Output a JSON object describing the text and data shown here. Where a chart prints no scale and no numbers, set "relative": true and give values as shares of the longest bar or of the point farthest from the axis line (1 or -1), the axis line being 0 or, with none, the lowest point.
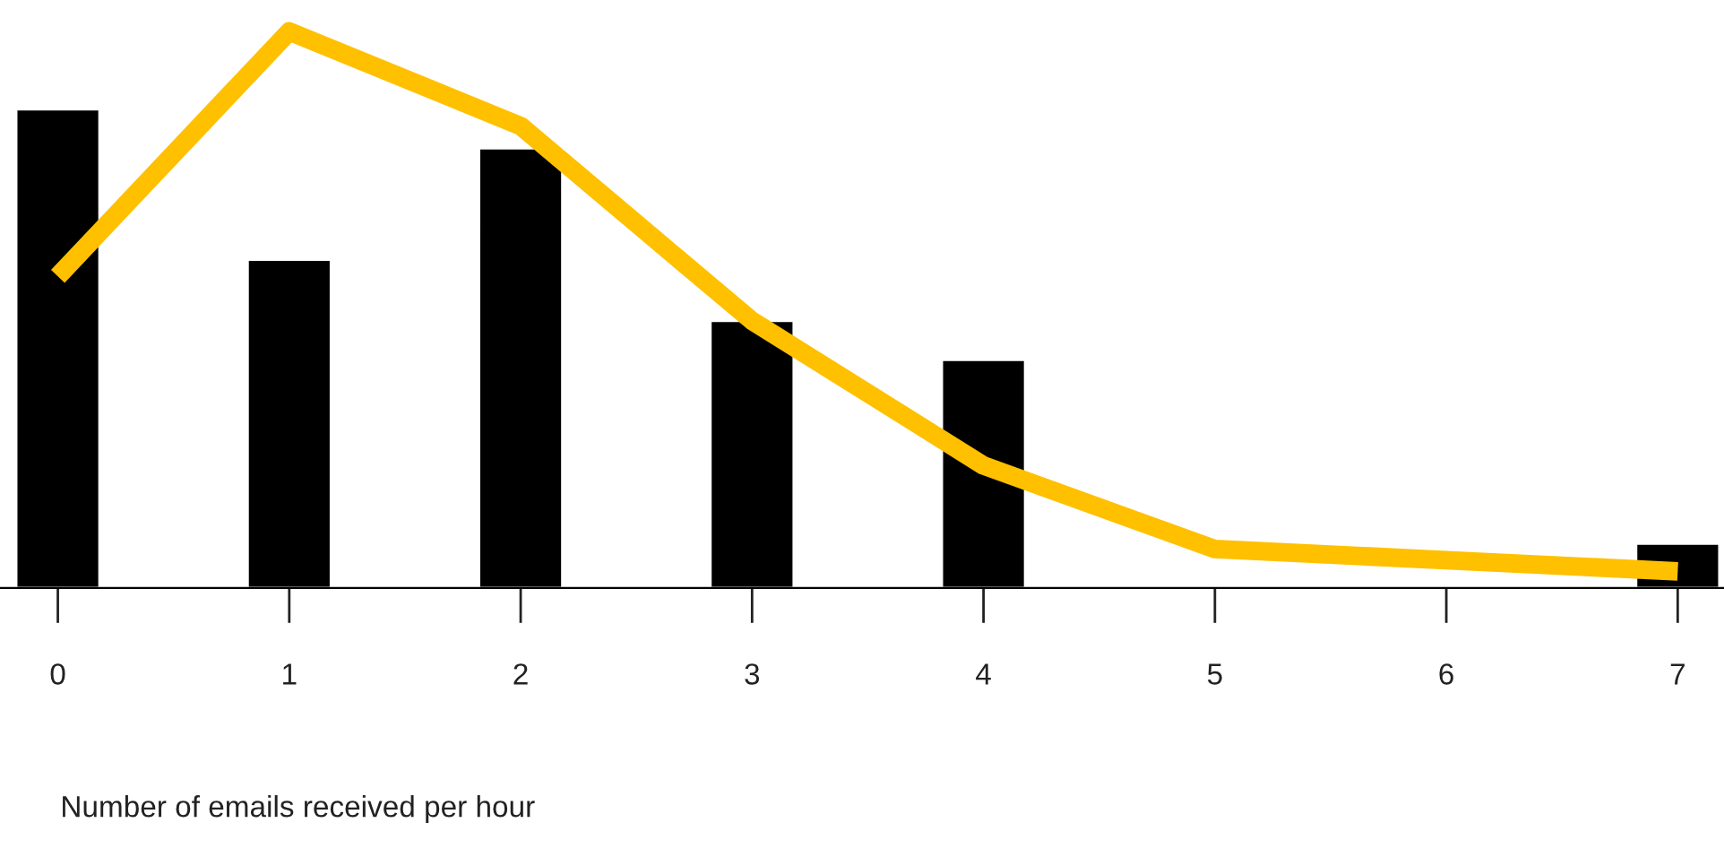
{
  "chart_data": {
    "type": "bar",
    "relative": true,
    "xlabel": "Number of emails received per hour",
    "x": [
      0,
      1,
      2,
      3,
      4,
      5,
      6,
      7
    ],
    "xlim": [
      -0.25,
      7.2
    ],
    "xticks": [
      0,
      1,
      2,
      3,
      4,
      5,
      6,
      7
    ],
    "grid": false,
    "legend": false,
    "series": [
      {
        "color": "#000000",
        "values": [
          0.86,
          0.59,
          0.79,
          0.48,
          0.41,
          null,
          null,
          0.08
        ]
      },
      {
        "type": "line",
        "color": "#ffc000",
        "values": [
          0.56,
          1.0,
          0.83,
          0.48,
          0.22,
          0.07,
          0.05,
          0.03
        ]
      }
    ]
  }
}
